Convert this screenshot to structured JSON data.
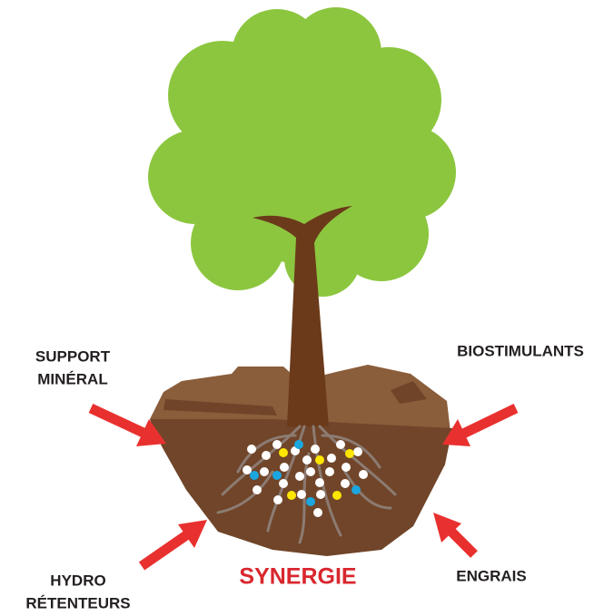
{
  "labels": {
    "support_mineral": [
      "SUPPORT",
      "MINÉRAL"
    ],
    "biostimulants": "BIOSTIMULANTS",
    "hydro_retenteurs": [
      "HYDRO",
      "RÉTENTEURS"
    ],
    "engrais": "ENGRAIS",
    "synergie": "SYNERGIE"
  }
}
